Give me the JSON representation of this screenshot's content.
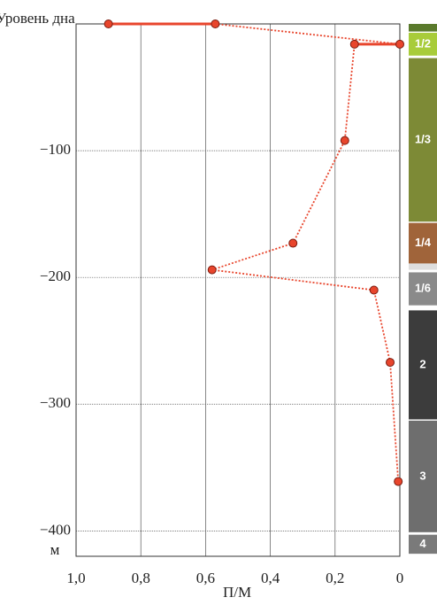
{
  "chart_data": {
    "type": "scatter",
    "y_top_label": "Уровень дна",
    "y_unit": "м",
    "x_label": "П/М",
    "xlim": [
      1.0,
      0
    ],
    "ylim": [
      -420,
      0
    ],
    "xticks": [
      {
        "value": 1.0,
        "label": "1,0"
      },
      {
        "value": 0.8,
        "label": "0,8"
      },
      {
        "value": 0.6,
        "label": "0,6"
      },
      {
        "value": 0.4,
        "label": "0,4"
      },
      {
        "value": 0.2,
        "label": "0,2"
      },
      0
    ],
    "yticks": [
      {
        "value": -100,
        "label": "−100"
      },
      {
        "value": -200,
        "label": "−200"
      },
      {
        "value": -300,
        "label": "−300"
      },
      {
        "value": -400,
        "label": "−400"
      }
    ],
    "grid": true,
    "series": [
      {
        "color": "#e8452c",
        "x": [
          0.9,
          0.57,
          0.0,
          0.14,
          0.17,
          0.33,
          0.58,
          0.08,
          0.03,
          0.005
        ],
        "values": [
          0,
          0,
          -16,
          -16,
          -92,
          -173,
          -194,
          -210,
          -267,
          -361
        ]
      }
    ],
    "strata": [
      {
        "label": null,
        "top": 0,
        "bottom": -6,
        "color": "#5a7a2c"
      },
      {
        "label": "1/2",
        "top": -7,
        "bottom": -25,
        "color": "#a8cc3a"
      },
      {
        "label": "1/3",
        "top": -27,
        "bottom": -156,
        "color": "#7d8a36"
      },
      {
        "label": "1/4",
        "top": -157,
        "bottom": -189,
        "color": "#a0643a"
      },
      {
        "label": null,
        "top": -189,
        "bottom": -194,
        "color": "#dedede"
      },
      {
        "label": "1/6",
        "top": -196,
        "bottom": -222,
        "color": "#8a8a8a"
      },
      {
        "label": "2",
        "top": -226,
        "bottom": -312,
        "color": "#3c3c3c"
      },
      {
        "label": "3",
        "top": -313,
        "bottom": -401,
        "color": "#6e6e6e"
      },
      {
        "label": "4",
        "top": -403,
        "bottom": -418,
        "color": "#7a7a7a"
      }
    ]
  }
}
